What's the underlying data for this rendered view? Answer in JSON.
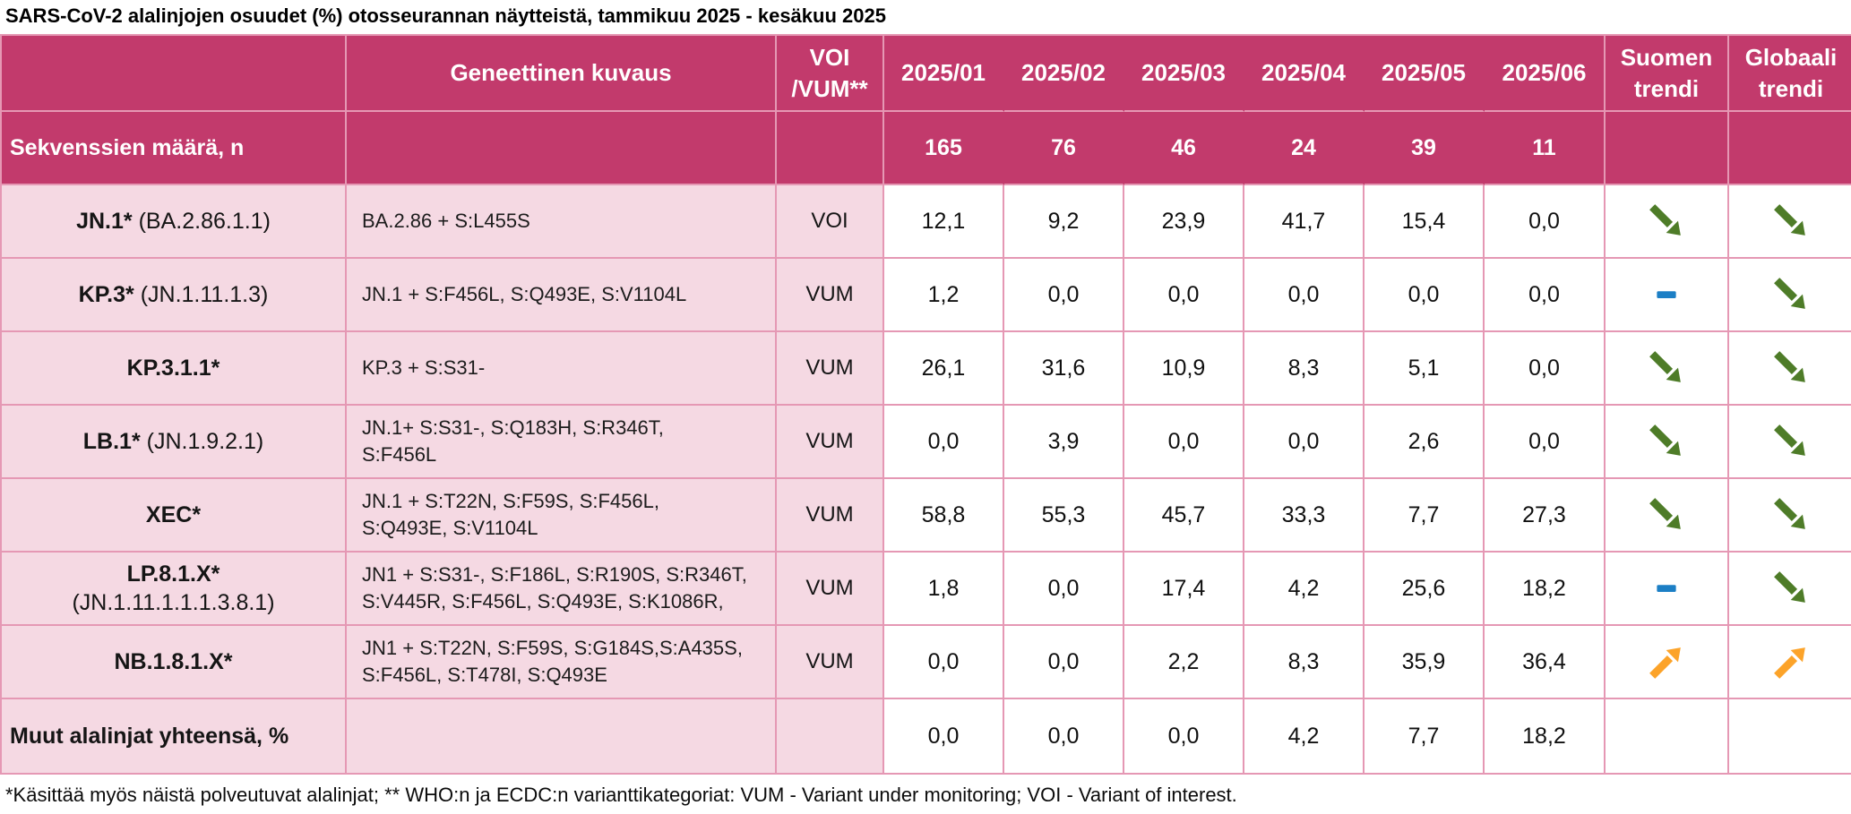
{
  "title": "SARS-CoV-2 alalinjojen osuudet (%) otosseurannan näytteistä, tammikuu 2025 - kesäkuu 2025",
  "header": {
    "name": "",
    "genetic": "Geneettinen kuvaus",
    "category": "VOI\n/VUM**",
    "months": [
      "2025/01",
      "2025/02",
      "2025/03",
      "2025/04",
      "2025/05",
      "2025/06"
    ],
    "fi_trend": "Suomen\ntrendi",
    "global_trend": "Globaali\ntrendi"
  },
  "counts_row": {
    "label": "Sekvenssien määrä, n",
    "values": [
      "165",
      "76",
      "46",
      "24",
      "39",
      "11"
    ]
  },
  "rows": [
    {
      "name_bold": "JN.1*",
      "name_rest": "(BA.2.86.1.1)",
      "desc": "BA.2.86 + S:L455S",
      "cat": "VOI",
      "values": [
        "12,1",
        "9,2",
        "23,9",
        "41,7",
        "15,4",
        "0,0"
      ],
      "fi_trend": "down",
      "global_trend": "down"
    },
    {
      "name_bold": "KP.3*",
      "name_rest": "(JN.1.11.1.3)",
      "desc": "JN.1 + S:F456L, S:Q493E, S:V1104L",
      "cat": "VUM",
      "values": [
        "1,2",
        "0,0",
        "0,0",
        "0,0",
        "0,0",
        "0,0"
      ],
      "fi_trend": "flat",
      "global_trend": "down"
    },
    {
      "name_bold": "KP.3.1.1*",
      "name_rest": "",
      "desc": "KP.3 + S:S31-",
      "cat": "VUM",
      "values": [
        "26,1",
        "31,6",
        "10,9",
        "8,3",
        "5,1",
        "0,0"
      ],
      "fi_trend": "down",
      "global_trend": "down"
    },
    {
      "name_bold": "LB.1*",
      "name_rest": "(JN.1.9.2.1)",
      "desc": "JN.1+ S:S31-, S:Q183H, S:R346T,\nS:F456L",
      "cat": "VUM",
      "values": [
        "0,0",
        "3,9",
        "0,0",
        "0,0",
        "2,6",
        "0,0"
      ],
      "fi_trend": "down",
      "global_trend": "down"
    },
    {
      "name_bold": "XEC*",
      "name_rest": "",
      "desc": "JN.1 + S:T22N, S:F59S, S:F456L,\nS:Q493E, S:V1104L",
      "cat": "VUM",
      "values": [
        "58,8",
        "55,3",
        "45,7",
        "33,3",
        "7,7",
        "27,3"
      ],
      "fi_trend": "down",
      "global_trend": "down"
    },
    {
      "name_bold": "LP.8.1.X*",
      "name_rest": "(JN.1.11.1.1.1.3.8.1)",
      "desc": "JN1 + S:S31-, S:F186L, S:R190S, S:R346T,\nS:V445R, S:F456L, S:Q493E, S:K1086R,",
      "cat": "VUM",
      "values": [
        "1,8",
        "0,0",
        "17,4",
        "4,2",
        "25,6",
        "18,2"
      ],
      "fi_trend": "flat",
      "global_trend": "down"
    },
    {
      "name_bold": "NB.1.8.1.X*",
      "name_rest": "",
      "desc": "JN1 + S:T22N, S:F59S, S:G184S,S:A435S,\nS:F456L, S:T478I, S:Q493E",
      "cat": "VUM",
      "values": [
        "0,0",
        "0,0",
        "2,2",
        "8,3",
        "35,9",
        "36,4"
      ],
      "fi_trend": "up",
      "global_trend": "up"
    },
    {
      "name_bold": "Muut alalinjat yhteensä, %",
      "name_rest": "",
      "desc": "",
      "cat": "",
      "values": [
        "0,0",
        "0,0",
        "0,0",
        "4,2",
        "7,7",
        "18,2"
      ],
      "fi_trend": "",
      "global_trend": ""
    }
  ],
  "footnote": "*Käsittää myös näistä polveutuvat alalinjat; ** WHO:n ja ECDC:n varianttikategoriat: VUM - Variant under monitoring; VOI - Variant of interest.",
  "colors": {
    "header_bg": "#c23a6c",
    "row_pink": "#f5d9e3",
    "border": "#e598b4",
    "trend_down": "#4e7c28",
    "trend_flat": "#1c7fc5",
    "trend_up": "#fca329"
  }
}
